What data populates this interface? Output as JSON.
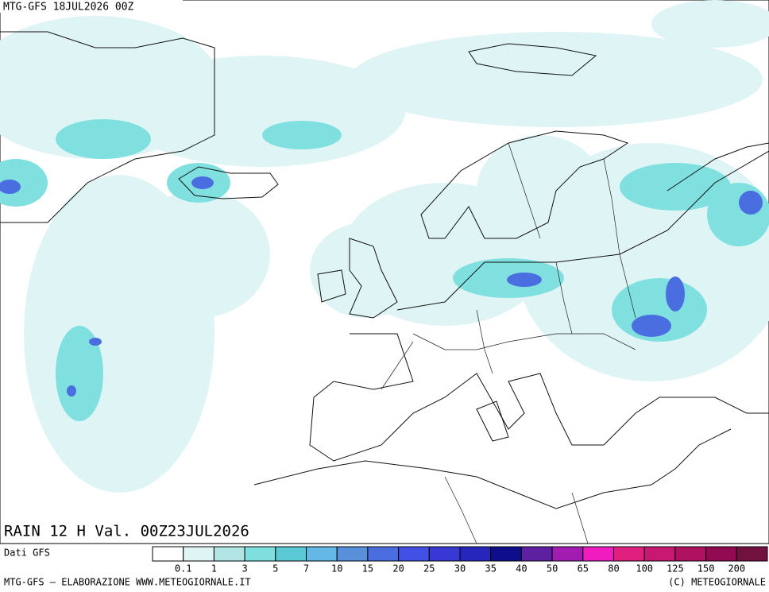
{
  "header": {
    "run": "MTG-GFS 18JUL2026 00Z",
    "product": "RAIN 12 H Val. 00Z23JUL2026"
  },
  "legend": {
    "source": "Dati GFS",
    "colors": [
      "#ffffff",
      "#dff4f4",
      "#b2e4e4",
      "#80e0e0",
      "#5ccad4",
      "#64b8e6",
      "#5890dc",
      "#4a6ee0",
      "#4250e6",
      "#3838d4",
      "#2626bc",
      "#0e0e8c",
      "#5c20a0",
      "#a21cb2",
      "#f01cc0",
      "#e0207e",
      "#c81872",
      "#b01262",
      "#920a52",
      "#721040"
    ],
    "labels": [
      "0.1",
      "1",
      "3",
      "5",
      "7",
      "10",
      "15",
      "20",
      "25",
      "30",
      "35",
      "40",
      "50",
      "65",
      "80",
      "100",
      "125",
      "150",
      "200"
    ]
  },
  "footer": {
    "credit": "MTG-GFS — ELABORAZIONE WWW.METEOGIORNALE.IT",
    "copyright": "(C) METEOGIORNALE"
  }
}
